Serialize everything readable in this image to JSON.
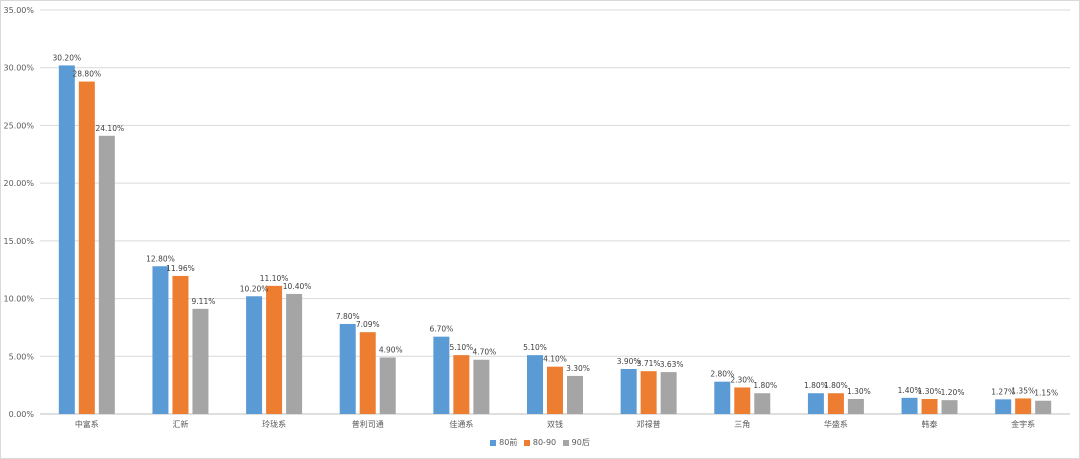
{
  "chart_data": {
    "type": "bar",
    "title": "",
    "xlabel": "",
    "ylabel": "",
    "ylim": [
      0,
      35
    ],
    "yticks": [
      "0.00%",
      "5.00%",
      "10.00%",
      "15.00%",
      "20.00%",
      "25.00%",
      "30.00%",
      "35.00%"
    ],
    "grid": true,
    "legend_position": "bottom",
    "categories": [
      "中富系",
      "汇新",
      "玲珑系",
      "普利司通",
      "佳通系",
      "双钱",
      "邓禄普",
      "三角",
      "华盛系",
      "韩泰",
      "金宇系"
    ],
    "series": [
      {
        "name": "80前",
        "color": "#5b9bd5",
        "values": [
          30.2,
          12.8,
          10.2,
          7.8,
          6.7,
          5.1,
          3.9,
          2.8,
          1.8,
          1.4,
          1.27
        ],
        "labels": [
          "30.20%",
          "12.80%",
          "10.20%",
          "7.80%",
          "6.70%",
          "5.10%",
          "3.90%",
          "2.80%",
          "1.80%",
          "1.40%",
          "1.27%"
        ]
      },
      {
        "name": "80-90",
        "color": "#ed7d31",
        "values": [
          28.8,
          11.96,
          11.1,
          7.09,
          5.1,
          4.1,
          3.71,
          2.3,
          1.8,
          1.3,
          1.35
        ],
        "labels": [
          "28.80%",
          "11.96%",
          "11.10%",
          "7.09%",
          "5.10%",
          "4.10%",
          "3.71%",
          "2.30%",
          "1.80%",
          "1.30%",
          "1.35%"
        ]
      },
      {
        "name": "90后",
        "color": "#a5a5a5",
        "values": [
          24.1,
          9.11,
          10.4,
          4.9,
          4.7,
          3.3,
          3.63,
          1.8,
          1.3,
          1.2,
          1.15
        ],
        "labels": [
          "24.10%",
          "9.11%",
          "10.40%",
          "4.90%",
          "4.70%",
          "3.30%",
          "3.63%",
          "1.80%",
          "1.30%",
          "1.20%",
          "1.15%"
        ]
      }
    ]
  }
}
